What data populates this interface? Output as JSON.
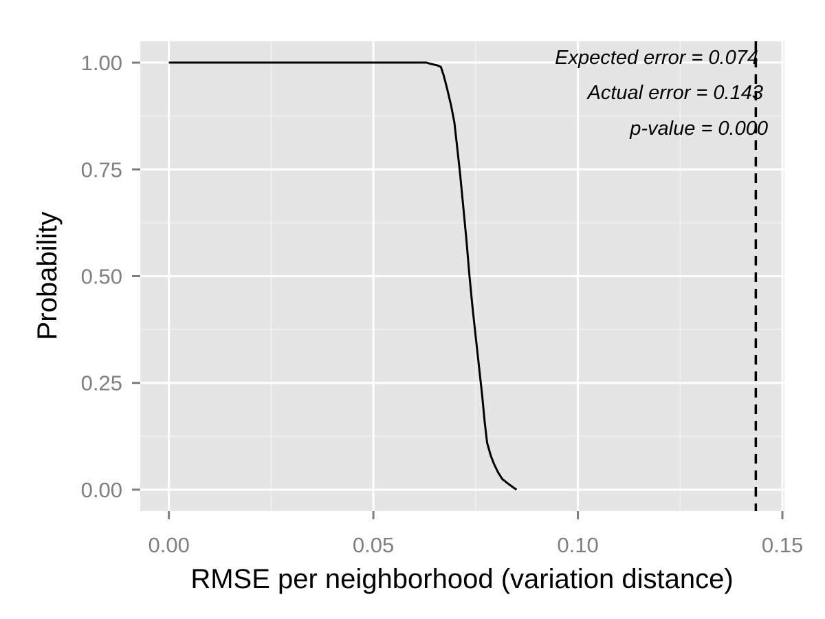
{
  "chart_data": {
    "type": "line",
    "title": "",
    "xlabel": "RMSE per neighborhood (variation distance)",
    "ylabel": "Probability",
    "xlim": [
      -0.007,
      0.1505
    ],
    "ylim": [
      -0.05,
      1.05
    ],
    "x_ticks": [
      0.0,
      0.05,
      0.1,
      0.15
    ],
    "x_tick_labels": [
      "0.00",
      "0.05",
      "0.10",
      "0.15"
    ],
    "y_ticks": [
      0.0,
      0.25,
      0.5,
      0.75,
      1.0
    ],
    "y_tick_labels": [
      "0.00",
      "0.25",
      "0.50",
      "0.75",
      "1.00"
    ],
    "grid": true,
    "colors": {
      "panel": "#e5e5e5",
      "grid": "#ffffff",
      "line": "#000000",
      "tick_text": "#7f7f7f"
    },
    "series": [
      {
        "values": [
          [
            0.0,
            1.0
          ],
          [
            0.063,
            1.0
          ],
          [
            0.064,
            0.997
          ],
          [
            0.0655,
            0.994
          ],
          [
            0.0665,
            0.99
          ],
          [
            0.0672,
            0.97
          ],
          [
            0.068,
            0.94
          ],
          [
            0.069,
            0.9
          ],
          [
            0.0698,
            0.86
          ],
          [
            0.0705,
            0.8
          ],
          [
            0.0712,
            0.74
          ],
          [
            0.072,
            0.66
          ],
          [
            0.0728,
            0.58
          ],
          [
            0.0735,
            0.5
          ],
          [
            0.0742,
            0.43
          ],
          [
            0.075,
            0.36
          ],
          [
            0.0758,
            0.29
          ],
          [
            0.0766,
            0.22
          ],
          [
            0.0772,
            0.16
          ],
          [
            0.0778,
            0.11
          ],
          [
            0.0787,
            0.08
          ],
          [
            0.0795,
            0.06
          ],
          [
            0.0805,
            0.04
          ],
          [
            0.0815,
            0.025
          ],
          [
            0.0828,
            0.015
          ],
          [
            0.0838,
            0.008
          ],
          [
            0.085,
            0.0
          ]
        ]
      }
    ],
    "reference_line": {
      "x": 0.1435,
      "style": "dashed"
    },
    "annotations": [
      "Expected error = 0.074",
      "Actual error = 0.143",
      "p-value = 0.000"
    ]
  }
}
